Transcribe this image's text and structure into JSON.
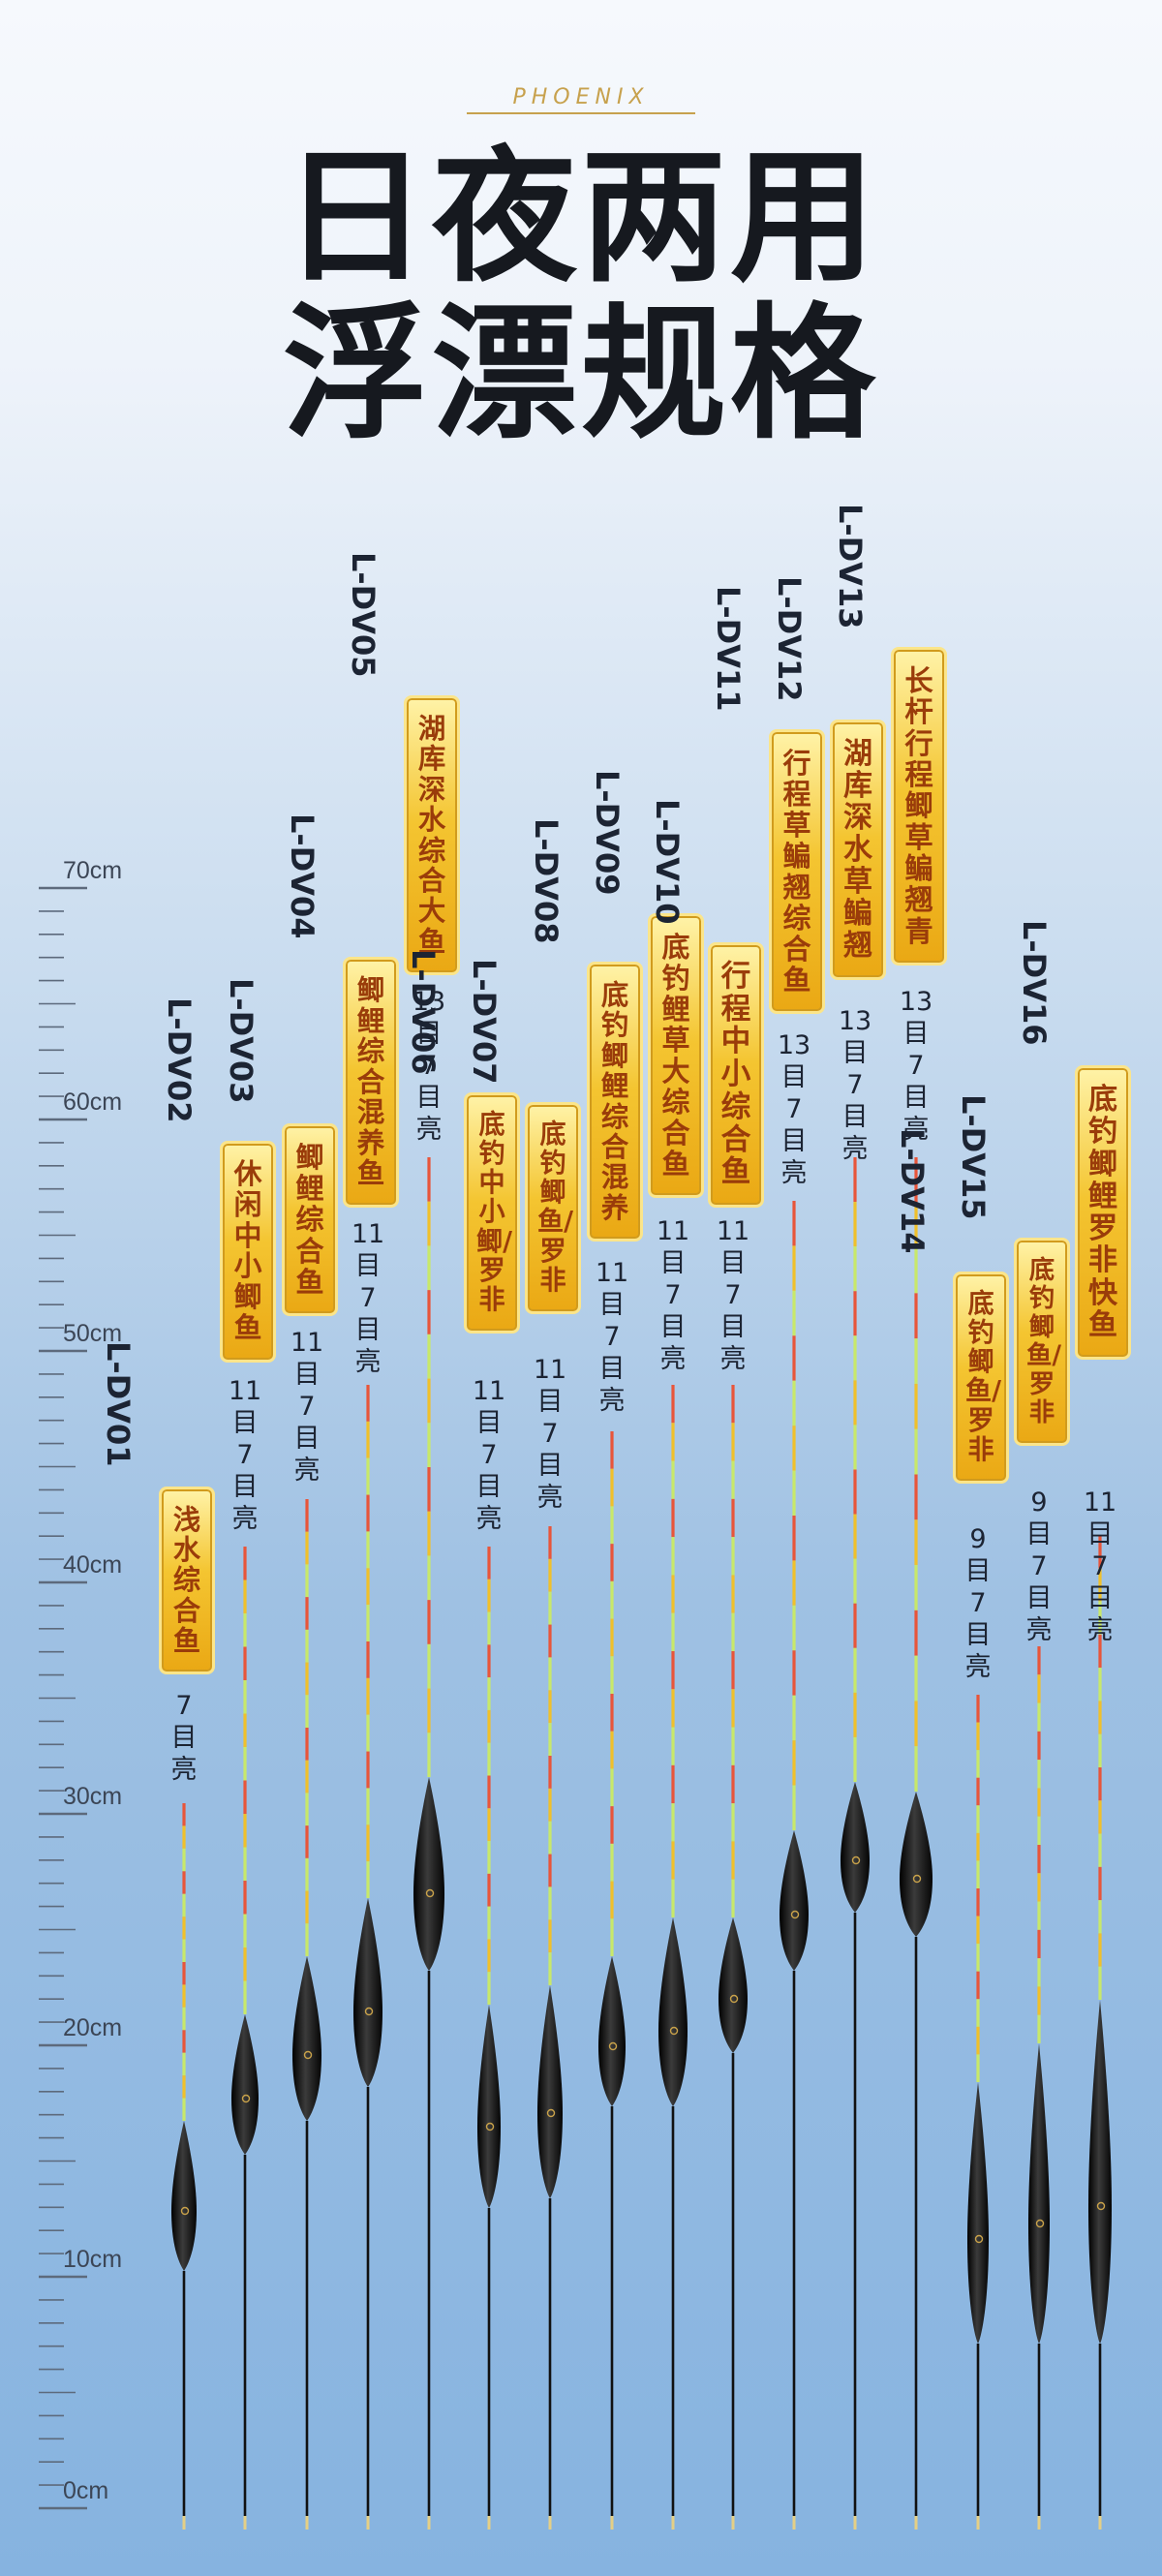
{
  "brand": "PHOENIX",
  "title": {
    "line1": "日夜两用",
    "line2": "浮漂规格"
  },
  "ruler": {
    "labels": [
      "70cm",
      "60cm",
      "50cm",
      "40cm",
      "30cm",
      "20cm",
      "10cm",
      "0cm"
    ]
  },
  "floats": [
    {
      "model": "L-DV01",
      "name": "浅水综合鱼",
      "spec": "7目亮"
    },
    {
      "model": "L-DV02",
      "name": "休闲中小鲫鱼",
      "spec": "11目7目亮"
    },
    {
      "model": "L-DV03",
      "name": "鲫鲤综合鱼",
      "spec": "11目7目亮"
    },
    {
      "model": "L-DV04",
      "name": "鲫鲤综合混养鱼",
      "spec": "11目7目亮"
    },
    {
      "model": "L-DV05",
      "name": "湖库深水综合大鱼",
      "spec": "13目7目亮"
    },
    {
      "model": "L-DV06",
      "name": "底钓中小鲫/罗非",
      "spec": "11目7目亮"
    },
    {
      "model": "L-DV07",
      "name": "底钓鲫鱼/罗非",
      "spec": "11目7目亮"
    },
    {
      "model": "L-DV08",
      "name": "底钓鲫鲤综合混养",
      "spec": "11目7目亮"
    },
    {
      "model": "L-DV09",
      "name": "底钓鲤草大综合鱼",
      "spec": "11目7目亮"
    },
    {
      "model": "L-DV10",
      "name": "行程中小综合鱼",
      "spec": "11目7目亮"
    },
    {
      "model": "L-DV11",
      "name": "行程草鳊翘综合鱼",
      "spec": "13目7目亮"
    },
    {
      "model": "L-DV12",
      "name": "湖库深水草鳊翘",
      "spec": "13目7目亮"
    },
    {
      "model": "L-DV13",
      "name": "长杆行程鲫草鳊翘青",
      "spec": "13目7目亮"
    },
    {
      "model": "L-DV14",
      "name": "底钓鲫鱼/罗非",
      "spec": "9目7目亮"
    },
    {
      "model": "L-DV15",
      "name": "底钓鲫鱼/罗非",
      "spec": "9目7目亮"
    },
    {
      "model": "L-DV16",
      "name": "底钓鲫鲤罗非快鱼",
      "spec": "11目7目亮"
    }
  ],
  "colors": {
    "title": "#16191f",
    "badge": "#f4c531",
    "badge_text": "#9a3c0a",
    "brand": "#c7a14d"
  }
}
